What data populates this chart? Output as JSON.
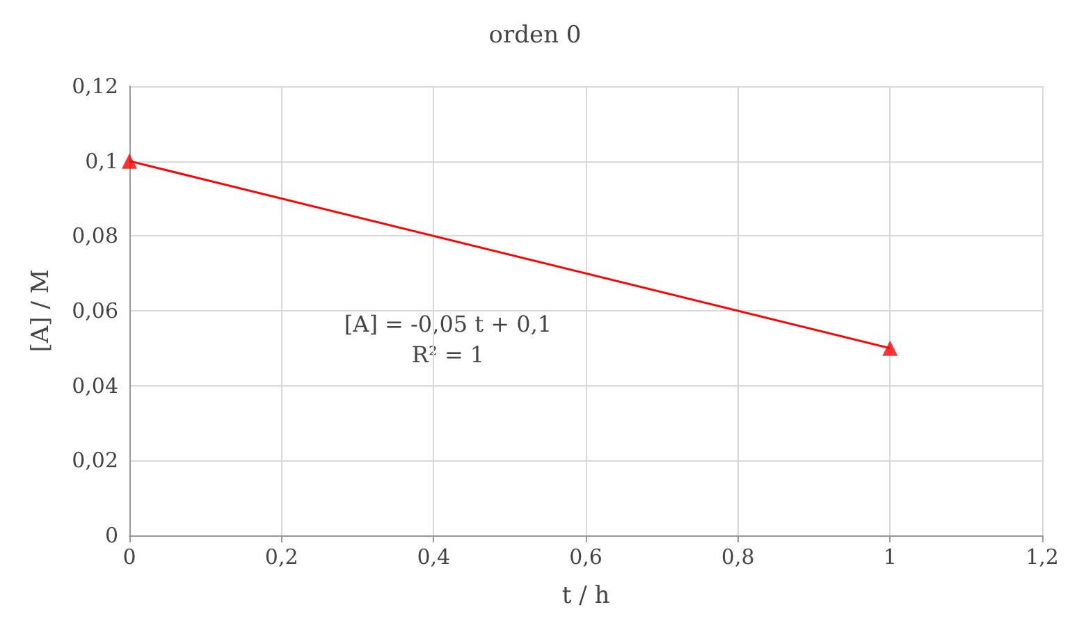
{
  "chart_data": {
    "type": "scatter",
    "title": "orden 0",
    "xlabel": "t / h",
    "ylabel": "[A] / M",
    "x": [
      0,
      1
    ],
    "series": [
      {
        "color": "#ff0000",
        "marker": "triangle",
        "values": [
          0.1,
          0.05
        ]
      },
      {
        "type": "line",
        "color": "#ff0000",
        "marker": "none",
        "x": [
          0,
          1
        ],
        "values": [
          0.1,
          0.05
        ]
      }
    ],
    "xlim": [
      0,
      1.2
    ],
    "xticks": [
      0,
      {
        "value": 0.2,
        "label": "0,2"
      },
      {
        "value": 0.4,
        "label": "0,4"
      },
      {
        "value": 0.6,
        "label": "0,6"
      },
      {
        "value": 0.8,
        "label": "0,8"
      },
      1,
      {
        "value": 1.2,
        "label": "1,2"
      }
    ],
    "ylim": [
      0,
      0.12
    ],
    "yticks": [
      0,
      {
        "value": 0.02,
        "label": "0,02"
      },
      {
        "value": 0.04,
        "label": "0,04"
      },
      {
        "value": 0.06,
        "label": "0,06"
      },
      {
        "value": 0.08,
        "label": "0,08"
      },
      {
        "value": 0.1,
        "label": "0,1"
      },
      {
        "value": 0.12,
        "label": "0,12"
      }
    ],
    "annotations": [
      "[A] = -0,05 t + 0,1",
      "R² = 1"
    ],
    "grid": true
  }
}
